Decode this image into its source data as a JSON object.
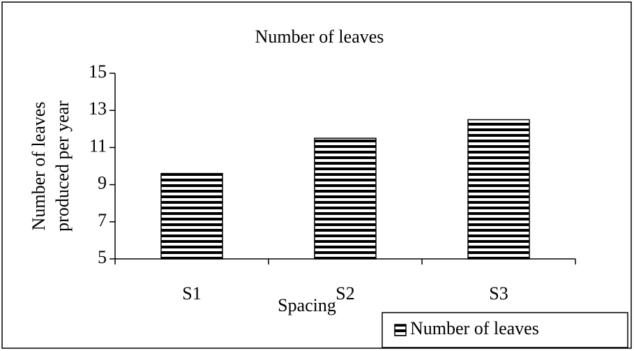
{
  "chart_data": {
    "type": "bar",
    "title": "Number of leaves",
    "categories": [
      "S1",
      "S2",
      "S3"
    ],
    "series": [
      {
        "name": "Number of leaves",
        "color": "#000000",
        "values": [
          9.6,
          11.5,
          12.5
        ]
      }
    ],
    "ylim": [
      5,
      15
    ],
    "yticks": [
      5,
      7,
      9,
      11,
      13,
      15
    ],
    "xlabel": "Spacing",
    "ylabel": [
      "Number of leaves",
      "produced per year"
    ],
    "legend": "bottom-right",
    "grid": false
  }
}
